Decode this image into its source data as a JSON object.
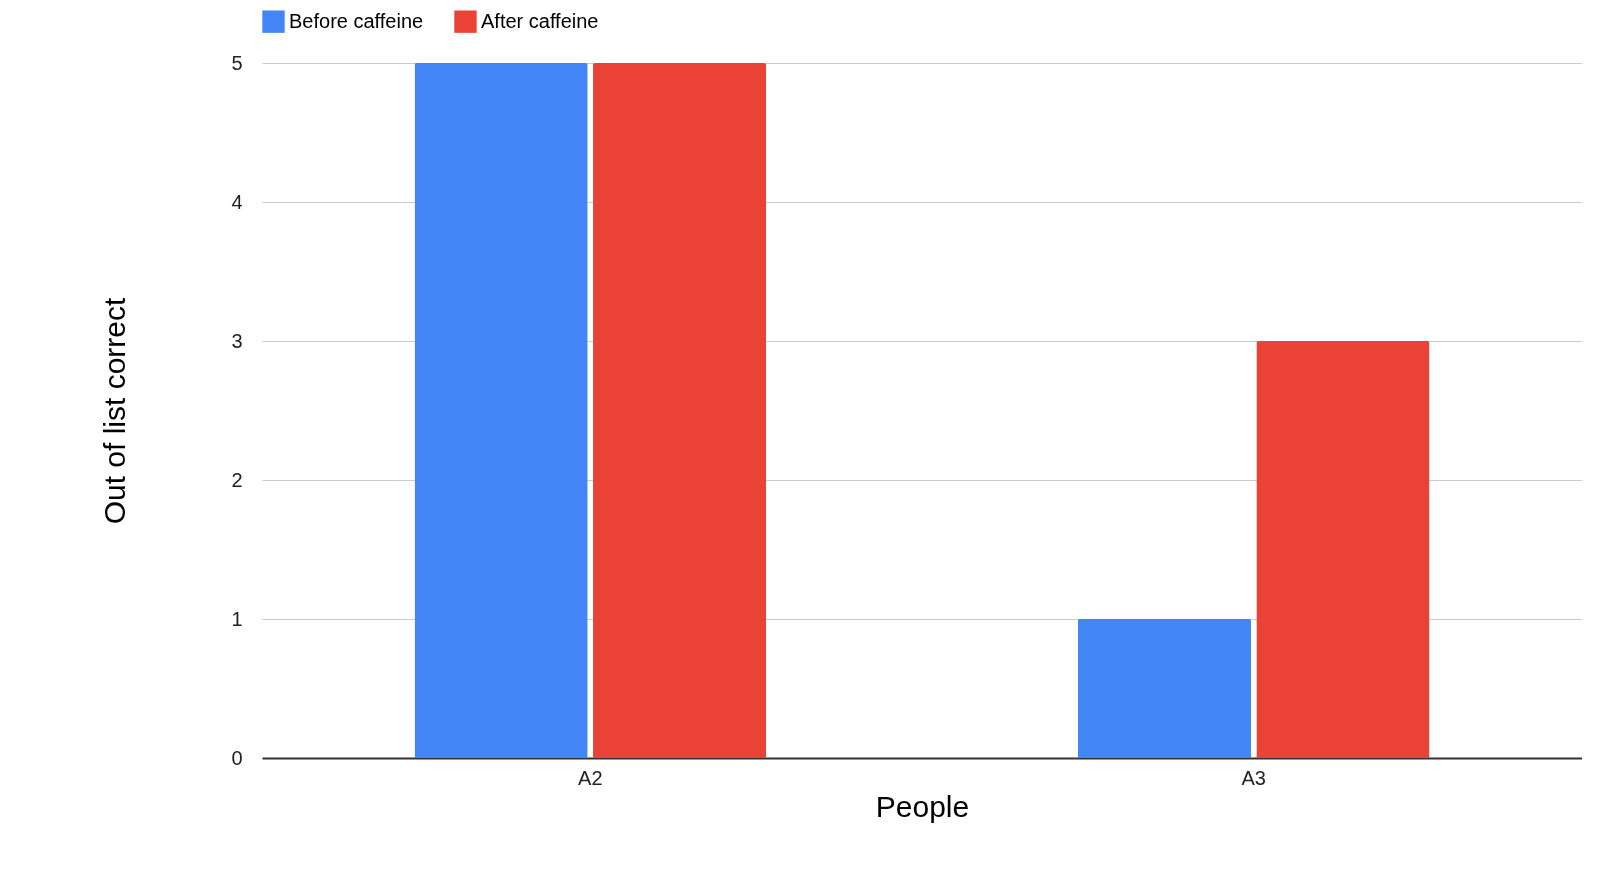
{
  "chart_data": {
    "type": "bar",
    "xlabel": "People",
    "ylabel": "Out of list correct",
    "categories": [
      "A2",
      "A3"
    ],
    "series": [
      {
        "name": "Before caffeine",
        "color": "#4285f4",
        "values": [
          5,
          1
        ]
      },
      {
        "name": "After caffeine",
        "color": "#ea4335",
        "values": [
          5,
          3
        ]
      }
    ],
    "ylim": [
      0,
      5
    ],
    "yticks": [
      0,
      1,
      2,
      3,
      4,
      5
    ],
    "grid": "y",
    "legend": "top"
  }
}
